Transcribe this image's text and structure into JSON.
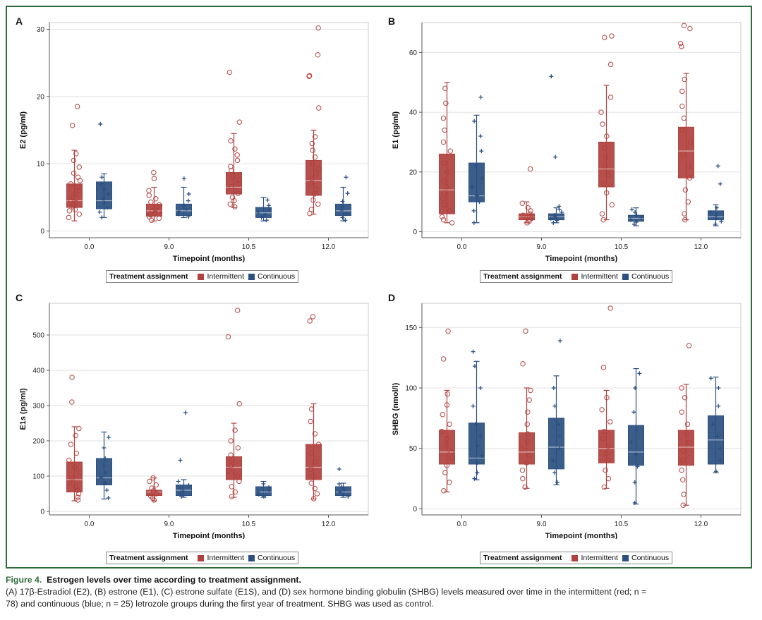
{
  "colors": {
    "intermittent": "#b0413e",
    "continuous": "#2a4f80",
    "frame": "#2f6b3a"
  },
  "legend": {
    "title": "Treatment assignment",
    "intermittent": "Intermittent",
    "continuous": "Continuous"
  },
  "caption": {
    "figure_label": "Figure 4.",
    "title": "Estrogen levels over time according to treatment assignment.",
    "line1": "(A) 17β-Estradiol (E2), (B) estrone (E1), (C) estrone sulfate (E1S), and (D) sex hormone binding globulin (SHBG) levels measured over time in the intermittent (red; n =",
    "line2": "78) and continuous (blue; n = 25) letrozole groups during the first year of treatment. SHBG was used as control."
  },
  "chart_data": [
    {
      "panel": "A",
      "type": "box",
      "ylabel": "E2 (pg/ml)",
      "xlabel": "Timepoint (months)",
      "categories": [
        "0.0",
        "9.0",
        "10.5",
        "12.0"
      ],
      "ylim": [
        -1,
        31
      ],
      "yticks": [
        0,
        10,
        20,
        30
      ],
      "series": [
        {
          "name": "Intermittent",
          "boxes": [
            {
              "min": 1.5,
              "q1": 3.5,
              "median": 4.5,
              "q3": 7,
              "max": 12,
              "outliers": [
                15.7,
                18.5
              ],
              "points": [
                2,
                2.5,
                3,
                3.2,
                3.6,
                4,
                4.2,
                4.6,
                5,
                5.5,
                6,
                6.5,
                7,
                7.5,
                8,
                8.6,
                9.5,
                10.5,
                11.5
              ]
            },
            {
              "min": 1.5,
              "q1": 2.2,
              "median": 3,
              "q3": 4,
              "max": 6.5,
              "outliers": [
                8.7
              ],
              "points": [
                1.6,
                1.9,
                2.1,
                2.4,
                2.6,
                2.8,
                3,
                3.3,
                3.6,
                3.9,
                4.3,
                4.8,
                5.3,
                6,
                7.8
              ]
            },
            {
              "min": 3.5,
              "q1": 5.5,
              "median": 6.5,
              "q3": 8.7,
              "max": 14.5,
              "outliers": [
                16.2,
                23.6
              ],
              "points": [
                3.6,
                4,
                4.5,
                5,
                5.6,
                6,
                6.6,
                7,
                7.6,
                8.2,
                9,
                9.6,
                10.5,
                11.3,
                12.2,
                13.4
              ]
            },
            {
              "min": 2.5,
              "q1": 5.3,
              "median": 7.5,
              "q3": 10.5,
              "max": 15,
              "outliers": [
                18.3,
                23,
                23.1,
                26.2,
                30.2
              ],
              "points": [
                2.6,
                3.2,
                4,
                4.6,
                5.5,
                6.2,
                7,
                7.8,
                8.5,
                9.3,
                10,
                11,
                12,
                13,
                14
              ]
            }
          ]
        },
        {
          "name": "Continuous",
          "boxes": [
            {
              "min": 2,
              "q1": 3.3,
              "median": 4.5,
              "q3": 7.3,
              "max": 8.5,
              "outliers": [
                15.9
              ],
              "points": [
                2,
                2.8,
                3.5,
                4.2,
                4.8,
                5.5,
                6.2,
                7,
                8
              ]
            },
            {
              "min": 2,
              "q1": 2.3,
              "median": 3,
              "q3": 4,
              "max": 6.5,
              "outliers": [
                7.8
              ],
              "points": [
                2.1,
                2.5,
                2.9,
                3.3,
                3.8,
                4.5,
                5.5
              ]
            },
            {
              "min": 1.5,
              "q1": 2,
              "median": 2.7,
              "q3": 3.5,
              "max": 5,
              "outliers": [],
              "points": [
                1.6,
                2,
                2.4,
                2.8,
                3.2,
                3.8,
                4.6
              ]
            },
            {
              "min": 1.5,
              "q1": 2.3,
              "median": 3,
              "q3": 4,
              "max": 6.5,
              "outliers": [
                8
              ],
              "points": [
                1.6,
                2,
                2.6,
                3.1,
                3.6,
                4.4,
                5.6
              ]
            }
          ]
        }
      ]
    },
    {
      "panel": "B",
      "type": "box",
      "ylabel": "E1 (pg/ml)",
      "xlabel": "Timepoint (months)",
      "categories": [
        "0.0",
        "9.0",
        "10.5",
        "12.0"
      ],
      "ylim": [
        -2,
        70
      ],
      "yticks": [
        0,
        20,
        40,
        60
      ],
      "series": [
        {
          "name": "Intermittent",
          "boxes": [
            {
              "min": 3,
              "q1": 6,
              "median": 14,
              "q3": 26,
              "max": 50,
              "outliers": [],
              "points": [
                3,
                4,
                5,
                7,
                9,
                11,
                13,
                15,
                17,
                20,
                23,
                27,
                30,
                34,
                38,
                43,
                48
              ]
            },
            {
              "min": 3,
              "q1": 4,
              "median": 5,
              "q3": 6,
              "max": 10,
              "outliers": [
                21
              ],
              "points": [
                3,
                3.5,
                4,
                4.5,
                5,
                5.5,
                6,
                7,
                8,
                9.5
              ]
            },
            {
              "min": 4,
              "q1": 15,
              "median": 21,
              "q3": 30,
              "max": 49,
              "outliers": [
                56,
                65,
                65.5
              ],
              "points": [
                4,
                6,
                9,
                13,
                16,
                19,
                22,
                25,
                28,
                32,
                36,
                40,
                45
              ]
            },
            {
              "min": 4,
              "q1": 18,
              "median": 27,
              "q3": 35,
              "max": 53,
              "outliers": [
                62,
                63,
                68,
                69
              ],
              "points": [
                4,
                6,
                10,
                14,
                18,
                22,
                26,
                30,
                34,
                38,
                42,
                47,
                51
              ]
            }
          ]
        },
        {
          "name": "Continuous",
          "boxes": [
            {
              "min": 3,
              "q1": 10,
              "median": 12,
              "q3": 23,
              "max": 39,
              "outliers": [
                45
              ],
              "points": [
                3,
                7,
                10,
                12,
                15,
                18,
                22,
                27,
                32,
                37
              ]
            },
            {
              "min": 3,
              "q1": 4,
              "median": 5,
              "q3": 6,
              "max": 8,
              "outliers": [
                25,
                52
              ],
              "points": [
                3,
                3.8,
                4.4,
                5,
                5.6,
                6.5,
                7.5,
                8.5
              ]
            },
            {
              "min": 2,
              "q1": 3.5,
              "median": 4.5,
              "q3": 5.5,
              "max": 8,
              "outliers": [],
              "points": [
                2.5,
                3.2,
                4,
                4.8,
                5.5,
                6.5,
                7.5
              ]
            },
            {
              "min": 2,
              "q1": 4,
              "median": 5,
              "q3": 7,
              "max": 9,
              "outliers": [
                16,
                22
              ],
              "points": [
                2.5,
                3.5,
                4.5,
                5.5,
                6.5,
                8
              ]
            }
          ]
        }
      ]
    },
    {
      "panel": "C",
      "type": "box",
      "ylabel": "E1s (pg/ml)",
      "xlabel": "Timepoint (months)",
      "categories": [
        "0.0",
        "9.0",
        "10.5",
        "12.0"
      ],
      "ylim": [
        -10,
        590
      ],
      "yticks": [
        0,
        100,
        200,
        300,
        400,
        500
      ],
      "series": [
        {
          "name": "Intermittent",
          "boxes": [
            {
              "min": 30,
              "q1": 55,
              "median": 90,
              "q3": 140,
              "max": 240,
              "outliers": [
                310,
                380
              ],
              "points": [
                32,
                40,
                50,
                60,
                70,
                80,
                95,
                110,
                125,
                145,
                165,
                190,
                215,
                235
              ]
            },
            {
              "min": 30,
              "q1": 45,
              "median": 55,
              "q3": 60,
              "max": 95,
              "outliers": [],
              "points": [
                32,
                38,
                44,
                50,
                55,
                60,
                66,
                75,
                85,
                95
              ]
            },
            {
              "min": 40,
              "q1": 90,
              "median": 125,
              "q3": 155,
              "max": 250,
              "outliers": [
                305,
                495,
                570
              ],
              "points": [
                42,
                55,
                70,
                85,
                100,
                115,
                130,
                145,
                160,
                180,
                200,
                230
              ]
            },
            {
              "min": 35,
              "q1": 90,
              "median": 125,
              "q3": 190,
              "max": 305,
              "outliers": [
                540,
                552
              ],
              "points": [
                36,
                50,
                65,
                80,
                100,
                120,
                140,
                165,
                190,
                220,
                255,
                290
              ]
            }
          ]
        },
        {
          "name": "Continuous",
          "boxes": [
            {
              "min": 35,
              "q1": 75,
              "median": 95,
              "q3": 150,
              "max": 225,
              "outliers": [],
              "points": [
                38,
                60,
                80,
                95,
                110,
                130,
                150,
                180,
                210
              ]
            },
            {
              "min": 40,
              "q1": 45,
              "median": 60,
              "q3": 75,
              "max": 90,
              "outliers": [
                145,
                280
              ],
              "points": [
                42,
                50,
                58,
                66,
                74,
                85
              ]
            },
            {
              "min": 40,
              "q1": 45,
              "median": 55,
              "q3": 70,
              "max": 85,
              "outliers": [],
              "points": [
                42,
                48,
                54,
                60,
                68,
                78
              ]
            },
            {
              "min": 40,
              "q1": 45,
              "median": 55,
              "q3": 70,
              "max": 80,
              "outliers": [
                120
              ],
              "points": [
                42,
                48,
                55,
                62,
                70,
                78
              ]
            }
          ]
        }
      ]
    },
    {
      "panel": "D",
      "type": "box",
      "ylabel": "SHBG (nmol/l)",
      "xlabel": "Timepoint (months)",
      "categories": [
        "0.0",
        "9.0",
        "10.5",
        "12.0"
      ],
      "ylim": [
        -5,
        170
      ],
      "yticks": [
        0,
        50,
        100,
        150
      ],
      "series": [
        {
          "name": "Intermittent",
          "boxes": [
            {
              "min": 14,
              "q1": 37,
              "median": 47,
              "q3": 65,
              "max": 98,
              "outliers": [
                124,
                147
              ],
              "points": [
                15,
                22,
                30,
                36,
                42,
                47,
                53,
                58,
                64,
                70,
                78,
                86,
                95
              ]
            },
            {
              "min": 17,
              "q1": 37,
              "median": 47,
              "q3": 63,
              "max": 100,
              "outliers": [
                120,
                147
              ],
              "points": [
                18,
                25,
                32,
                38,
                44,
                50,
                56,
                62,
                70,
                80,
                90,
                98
              ]
            },
            {
              "min": 17,
              "q1": 38,
              "median": 50,
              "q3": 65,
              "max": 98,
              "outliers": [
                117,
                166
              ],
              "points": [
                18,
                25,
                32,
                40,
                46,
                52,
                58,
                64,
                72,
                82,
                92
              ]
            },
            {
              "min": 3,
              "q1": 36,
              "median": 51,
              "q3": 65,
              "max": 103,
              "outliers": [
                135
              ],
              "points": [
                3,
                12,
                24,
                32,
                40,
                48,
                55,
                62,
                70,
                80,
                92,
                100
              ]
            }
          ]
        },
        {
          "name": "Continuous",
          "boxes": [
            {
              "min": 24,
              "q1": 37,
              "median": 42,
              "q3": 71,
              "max": 122,
              "outliers": [
                130
              ],
              "points": [
                25,
                30,
                38,
                44,
                52,
                60,
                70,
                85,
                100,
                118
              ]
            },
            {
              "min": 20,
              "q1": 33,
              "median": 51,
              "q3": 75,
              "max": 110,
              "outliers": [
                139
              ],
              "points": [
                22,
                30,
                40,
                50,
                60,
                70,
                85,
                100
              ]
            },
            {
              "min": 4,
              "q1": 36,
              "median": 47,
              "q3": 69,
              "max": 116,
              "outliers": [],
              "points": [
                5,
                22,
                35,
                45,
                55,
                65,
                80,
                100,
                112
              ]
            },
            {
              "min": 30,
              "q1": 37,
              "median": 57,
              "q3": 77,
              "max": 109,
              "outliers": [],
              "points": [
                31,
                40,
                50,
                60,
                70,
                85,
                100,
                108
              ]
            }
          ]
        }
      ]
    }
  ]
}
